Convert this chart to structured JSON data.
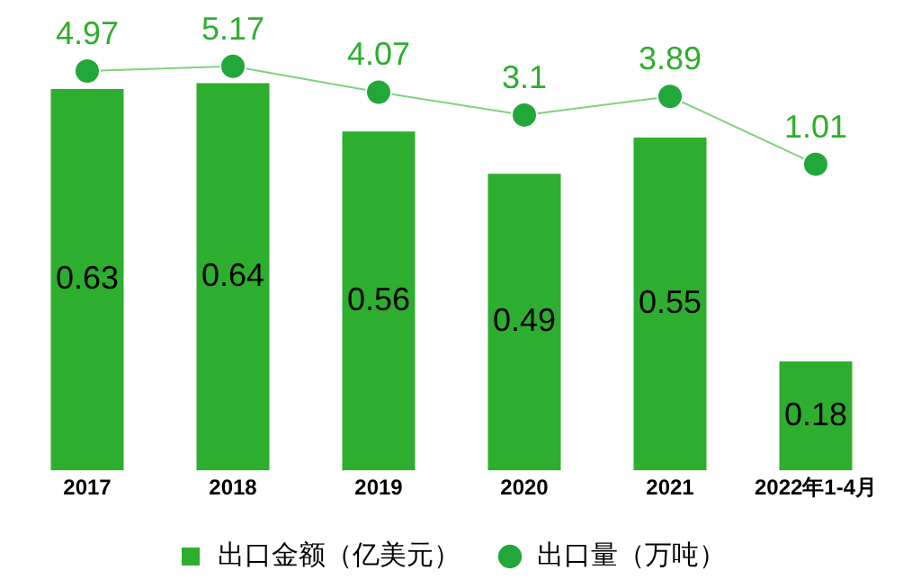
{
  "chart_data": {
    "type": "bar",
    "categories": [
      "2017",
      "2018",
      "2019",
      "2020",
      "2021",
      "2022年1-4月"
    ],
    "series": [
      {
        "name": "出口金额（亿美元）",
        "color": "#2eae2e",
        "values": [
          0.63,
          0.64,
          0.56,
          0.49,
          0.55,
          0.18
        ]
      },
      {
        "name": "出口量（万吨）",
        "type": "line",
        "axis": "y2",
        "color": "#7ed37e",
        "marker": "circle",
        "values": [
          4.97,
          5.17,
          4.07,
          3.1,
          3.89,
          1.01
        ]
      }
    ],
    "tick_labels": "x",
    "data_labels": true,
    "legend": "bottom"
  }
}
